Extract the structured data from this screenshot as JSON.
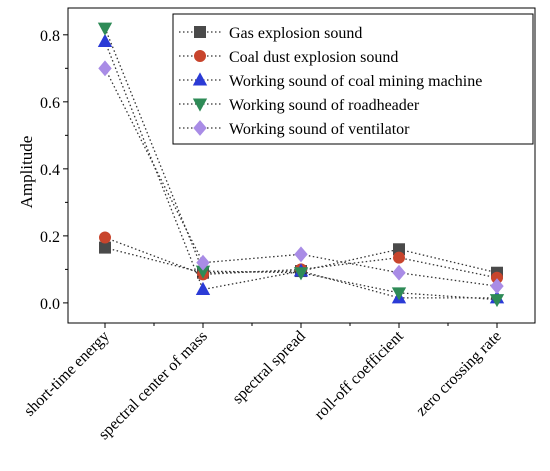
{
  "chart_data": {
    "type": "line",
    "ylabel": "Amplitude",
    "xlabel": "",
    "ylim": [
      -0.06,
      0.88
    ],
    "yticks": [
      0.0,
      0.2,
      0.4,
      0.6,
      0.8
    ],
    "ytick_labels": [
      "0.0",
      "0.2",
      "0.4",
      "0.6",
      "0.8"
    ],
    "categories": [
      "short-time energy",
      "spectral center of mass",
      "spectral spread",
      "roll-off coefficient",
      "zero crossing rate"
    ],
    "legend_position": "top-right",
    "series": [
      {
        "name": "Gas explosion sound",
        "marker": "square",
        "color": "#4a4a4a",
        "values": [
          0.165,
          0.09,
          0.095,
          0.16,
          0.09
        ]
      },
      {
        "name": "Coal dust explosion sound",
        "marker": "circle",
        "color": "#c8452d",
        "values": [
          0.195,
          0.085,
          0.1,
          0.135,
          0.075
        ]
      },
      {
        "name": "Working sound of coal mining machine",
        "marker": "triangle-up",
        "color": "#2b3bd6",
        "values": [
          0.78,
          0.04,
          0.095,
          0.015,
          0.015
        ]
      },
      {
        "name": "Working sound of roadheader",
        "marker": "triangle-down",
        "color": "#2e8b57",
        "values": [
          0.82,
          0.095,
          0.09,
          0.03,
          0.01
        ]
      },
      {
        "name": "Working sound of ventilator",
        "marker": "diamond",
        "color": "#a98ce6",
        "values": [
          0.7,
          0.12,
          0.145,
          0.09,
          0.05
        ]
      }
    ]
  }
}
